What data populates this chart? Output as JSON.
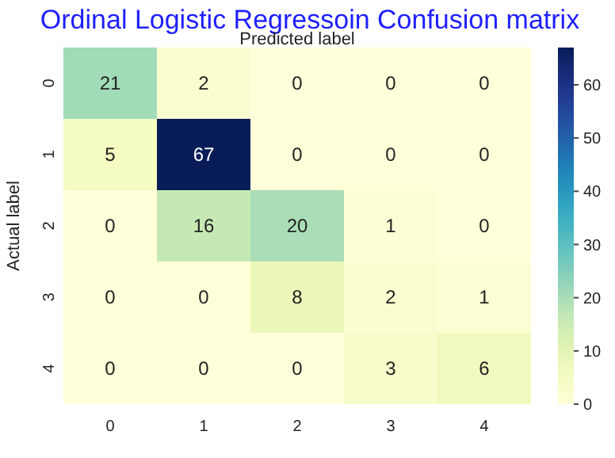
{
  "chart_data": {
    "type": "heatmap",
    "title": "Ordinal Logistic Regressoin Confusion matrix",
    "xlabel": "Predicted label",
    "ylabel": "Actual label",
    "categories": [
      "0",
      "1",
      "2",
      "3",
      "4"
    ],
    "y_categories": [
      "0",
      "1",
      "2",
      "3",
      "4"
    ],
    "cells": [
      [
        21,
        2,
        0,
        0,
        0
      ],
      [
        5,
        67,
        0,
        0,
        0
      ],
      [
        0,
        16,
        20,
        1,
        0
      ],
      [
        0,
        0,
        8,
        2,
        1
      ],
      [
        0,
        0,
        0,
        3,
        6
      ]
    ],
    "data_labels": true,
    "clim": [
      0,
      67
    ],
    "cticks": [
      0,
      10,
      20,
      30,
      40,
      50,
      60
    ]
  }
}
